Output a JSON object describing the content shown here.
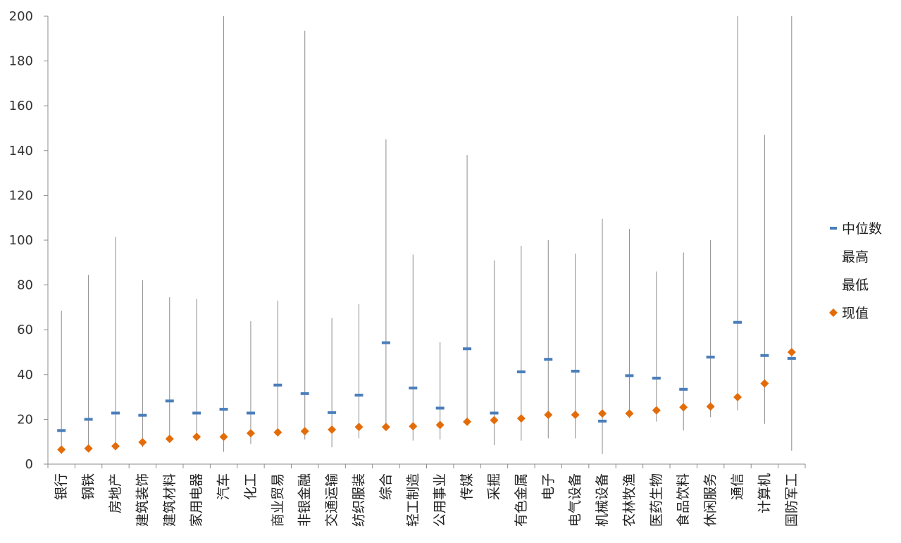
{
  "chart_data": {
    "type": "stock",
    "title": "",
    "xlabel": "",
    "ylabel": "",
    "ylim": [
      0,
      200
    ],
    "yticks": [
      0,
      20,
      40,
      60,
      80,
      100,
      120,
      140,
      160,
      180,
      200
    ],
    "categories": [
      "银行",
      "钢铁",
      "房地产",
      "建筑装饰",
      "建筑材料",
      "家用电器",
      "汽车",
      "化工",
      "商业贸易",
      "非银金融",
      "交通运输",
      "纺织服装",
      "综合",
      "轻工制造",
      "公用事业",
      "传媒",
      "采掘",
      "有色金属",
      "电子",
      "电气设备",
      "机械设备",
      "农林牧渔",
      "医药生物",
      "食品饮料",
      "休闲服务",
      "通信",
      "计算机",
      "国防军工"
    ],
    "series": [
      {
        "name": "中位数",
        "color": "#4a7ebb",
        "marker": "dash",
        "values": [
          15,
          20,
          22.8,
          21.8,
          28.2,
          22.8,
          24.5,
          22.8,
          35.3,
          31.5,
          23,
          30.8,
          54.2,
          34,
          25,
          51.5,
          22.8,
          41.2,
          46.8,
          41.5,
          19.2,
          39.5,
          38.4,
          33.4,
          47.8,
          63.3,
          48.5,
          47.2
        ]
      },
      {
        "name": "最高",
        "color": "#8c8c8c",
        "marker": "none",
        "values": [
          68.5,
          84.5,
          101.5,
          82.2,
          74.5,
          73.8,
          200,
          63.8,
          73,
          193.5,
          65.2,
          71.5,
          145,
          93.5,
          54.5,
          138,
          91,
          97.5,
          100,
          94,
          109.5,
          105,
          86,
          94.5,
          100,
          200,
          147,
          200
        ]
      },
      {
        "name": "最低",
        "color": "#8c8c8c",
        "marker": "none",
        "values": [
          4.5,
          6,
          6.5,
          7.5,
          9.5,
          10.5,
          5.5,
          9,
          12.5,
          11,
          7.5,
          11.5,
          15,
          10.5,
          11,
          17.5,
          8.5,
          10.5,
          11.5,
          11.5,
          4.5,
          20.5,
          19,
          15,
          21,
          24,
          18,
          6
        ]
      },
      {
        "name": "现值",
        "color": "#e36c09",
        "marker": "diamond",
        "values": [
          6.5,
          7,
          8,
          9.8,
          11.3,
          12.2,
          12.2,
          13.8,
          14.2,
          14.7,
          15.4,
          16.6,
          16.6,
          16.9,
          17.5,
          18.9,
          19.6,
          20.4,
          22,
          22,
          22.6,
          22.6,
          24,
          25.4,
          25.7,
          29.9,
          36,
          50
        ]
      }
    ],
    "legend": {
      "position": "right",
      "entries": [
        "中位数",
        "最高",
        "最低",
        "现值"
      ]
    },
    "grid": false
  }
}
